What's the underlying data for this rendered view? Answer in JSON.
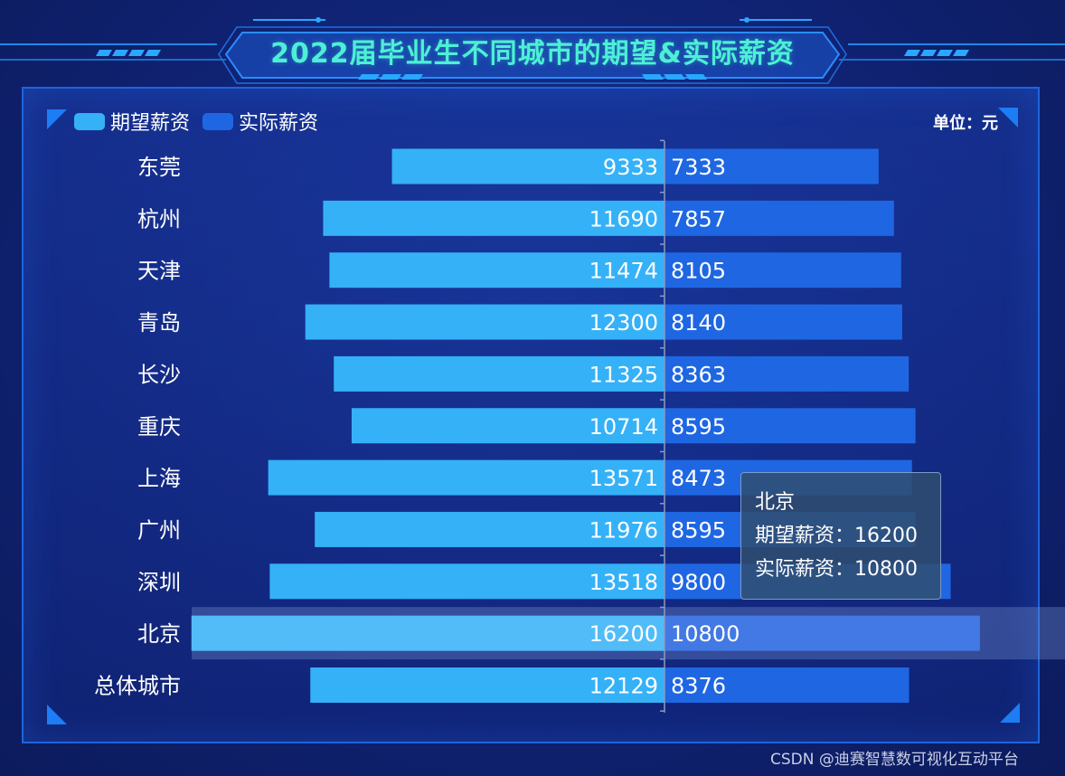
{
  "title": "2022届毕业生不同城市的期望&实际薪资",
  "unit_label": "单位：元",
  "watermark": "CSDN @迪赛智慧数可视化互动平台",
  "colors": {
    "expected": "#35b1f8",
    "actual": "#1f67e2",
    "highlight_expected": "#52bcf8",
    "highlight_actual": "#4279e4",
    "title": "#4cf0d5",
    "background": "#0f2170",
    "panel_border": "#1e64dc"
  },
  "tooltip": {
    "title": "北京",
    "rows": [
      {
        "name": "期望薪资",
        "sep": "：",
        "value": "16200"
      },
      {
        "name": "实际薪资",
        "sep": "：",
        "value": "10800"
      }
    ]
  },
  "chart_data": {
    "type": "bar",
    "orientation": "horizontal-diverging",
    "title": "2022届毕业生不同城市的期望&实际薪资",
    "legend": [
      "期望薪资",
      "实际薪资"
    ],
    "legend_position": "top-left",
    "categories": [
      "东莞",
      "杭州",
      "天津",
      "青岛",
      "长沙",
      "重庆",
      "上海",
      "广州",
      "深圳",
      "北京",
      "总体城市"
    ],
    "series": [
      {
        "name": "期望薪资",
        "values": [
          9333,
          11690,
          11474,
          12300,
          11325,
          10714,
          13571,
          11976,
          13518,
          16200,
          12129
        ]
      },
      {
        "name": "实际薪资",
        "values": [
          7333,
          7857,
          8105,
          8140,
          8363,
          8595,
          8473,
          8595,
          9800,
          10800,
          8376
        ]
      }
    ],
    "highlighted_category": "北京",
    "grid": false
  }
}
